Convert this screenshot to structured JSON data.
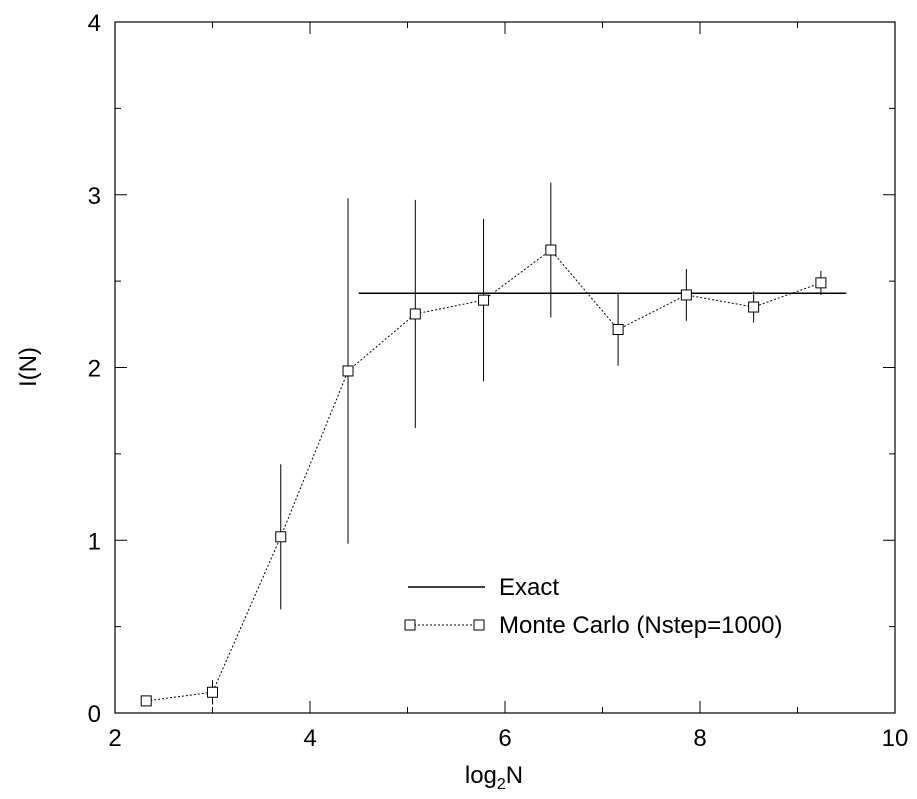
{
  "chart_data": {
    "type": "scatter",
    "title": "",
    "xlabel": "log2N",
    "xlabel_parts": {
      "base": "log",
      "sub": "2",
      "rest": "N"
    },
    "ylabel": "I(N)",
    "xlim": [
      2,
      10
    ],
    "ylim": [
      0,
      4
    ],
    "xticks": [
      2,
      4,
      6,
      8,
      10
    ],
    "yticks": [
      0,
      1,
      2,
      3,
      4
    ],
    "x_minor": [
      3,
      5,
      7,
      9
    ],
    "y_minor": [
      0.5,
      1.5,
      2.5,
      3.5
    ],
    "grid": false,
    "legend_position": "lower-right",
    "series": [
      {
        "name": "Exact",
        "style": "solid-line",
        "color": "#000000",
        "x": [
          4.5,
          9.5
        ],
        "y": [
          2.43,
          2.43
        ]
      },
      {
        "name": "Monte Carlo (Nstep=1000)",
        "style": "dotted-line-square-markers-with-errorbars",
        "color": "#000000",
        "x": [
          2.32,
          3.0,
          3.7,
          4.39,
          5.08,
          5.78,
          6.47,
          7.16,
          7.86,
          8.55,
          9.24
        ],
        "y": [
          0.07,
          0.12,
          1.02,
          1.98,
          2.31,
          2.39,
          2.68,
          2.22,
          2.42,
          2.35,
          2.49
        ],
        "err": [
          0.02,
          0.07,
          0.42,
          1.0,
          0.66,
          0.47,
          0.39,
          0.21,
          0.15,
          0.09,
          0.07
        ]
      }
    ]
  }
}
